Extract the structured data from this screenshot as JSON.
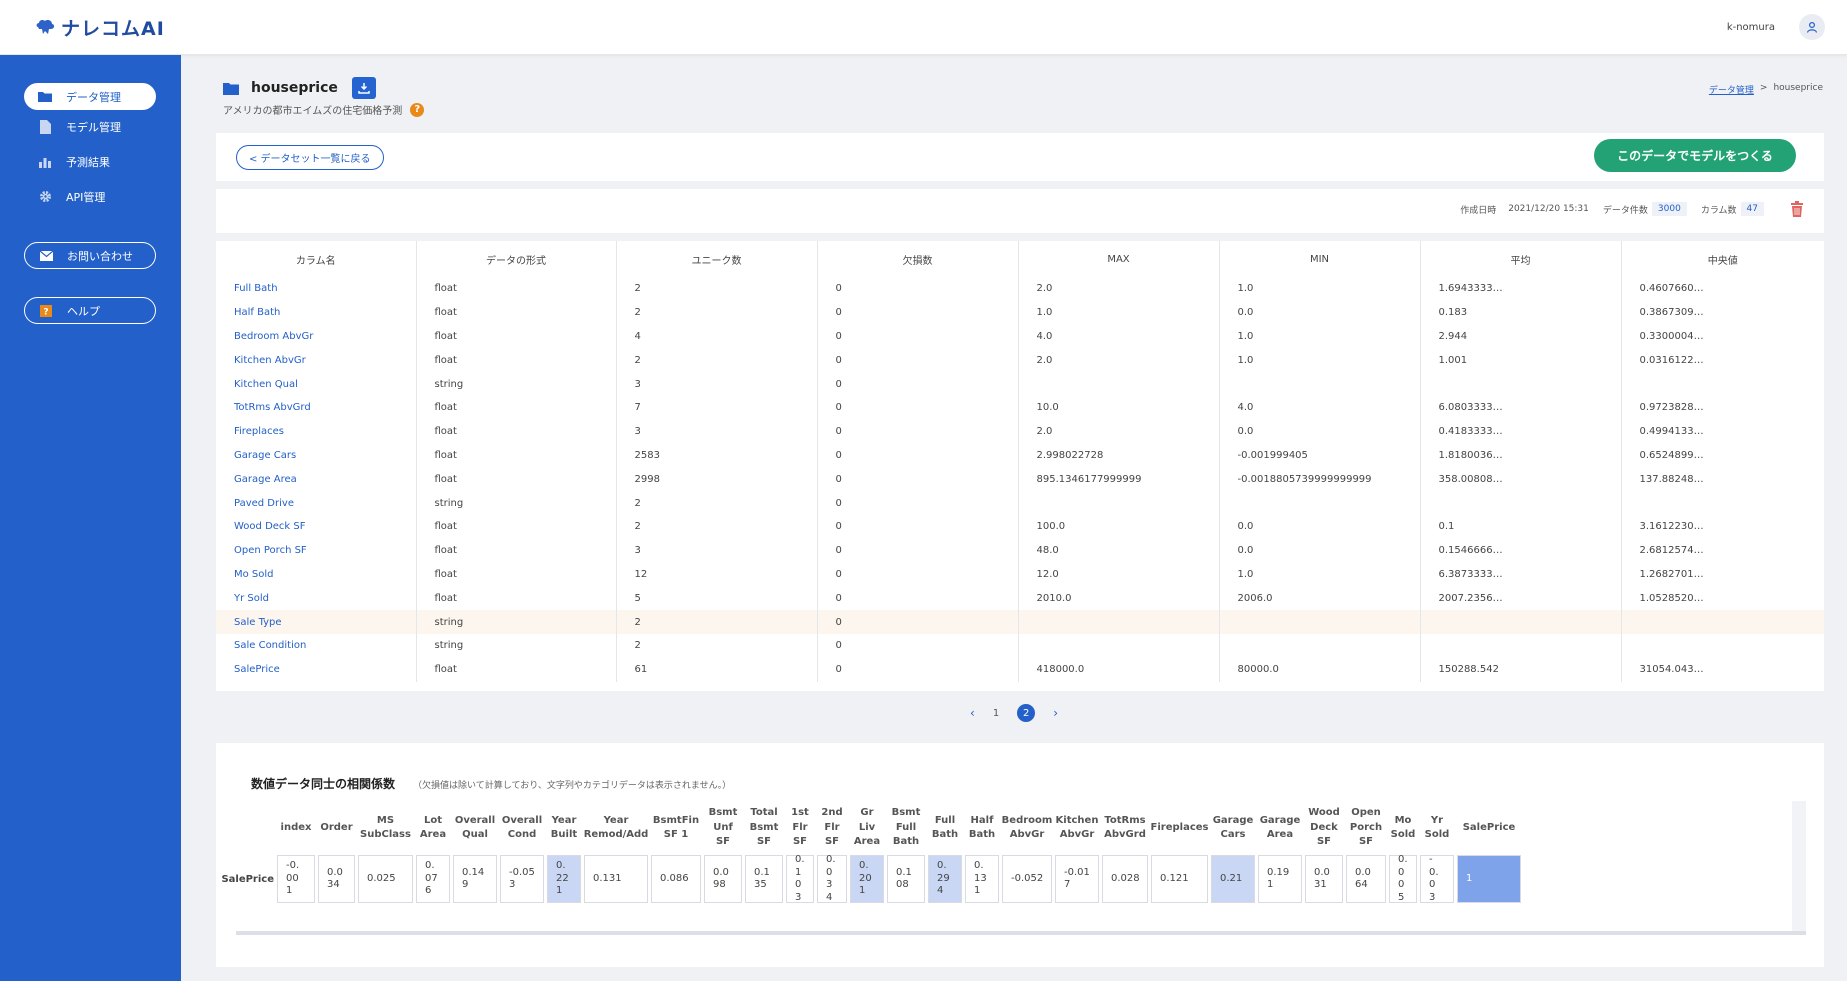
{
  "app": {
    "logo_text": "ナレコムAI",
    "user_name": "k-nomura"
  },
  "sidebar": {
    "items": [
      {
        "label": "データ管理",
        "active": true
      },
      {
        "label": "モデル管理"
      },
      {
        "label": "予測結果"
      },
      {
        "label": "API管理"
      }
    ],
    "contact_label": "お問い合わせ",
    "help_label": "ヘルプ"
  },
  "page": {
    "title": "houseprice",
    "subtitle": "アメリカの都市エイムズの住宅価格予測",
    "help_mark": "?",
    "breadcrumb": {
      "parent": "データ管理",
      "separator": ">",
      "current": "houseprice"
    },
    "back_label": "< データセット一覧に戻る",
    "make_model_label": "このデータでモデルをつくる"
  },
  "meta": {
    "created_label": "作成日時",
    "created_value": "2021/12/20 15:31",
    "rows_label": "データ件数",
    "rows_value": "3000",
    "cols_label": "カラム数",
    "cols_value": "47"
  },
  "stats": {
    "headers": [
      "カラム名",
      "データの形式",
      "ユニーク数",
      "欠損数",
      "MAX",
      "MIN",
      "平均",
      "中央値"
    ],
    "rows": [
      [
        "Full Bath",
        "float",
        "2",
        "0",
        "2.0",
        "1.0",
        "1.6943333…",
        "0.4607660…"
      ],
      [
        "Half Bath",
        "float",
        "2",
        "0",
        "1.0",
        "0.0",
        "0.183",
        "0.3867309…"
      ],
      [
        "Bedroom AbvGr",
        "float",
        "4",
        "0",
        "4.0",
        "1.0",
        "2.944",
        "0.3300004…"
      ],
      [
        "Kitchen AbvGr",
        "float",
        "2",
        "0",
        "2.0",
        "1.0",
        "1.001",
        "0.0316122…"
      ],
      [
        "Kitchen Qual",
        "string",
        "3",
        "0",
        "",
        "",
        "",
        ""
      ],
      [
        "TotRms AbvGrd",
        "float",
        "7",
        "0",
        "10.0",
        "4.0",
        "6.0803333…",
        "0.9723828…"
      ],
      [
        "Fireplaces",
        "float",
        "3",
        "0",
        "2.0",
        "0.0",
        "0.4183333…",
        "0.4994133…"
      ],
      [
        "Garage Cars",
        "float",
        "2583",
        "0",
        "2.998022728",
        "-0.001999405",
        "1.8180036…",
        "0.6524899…"
      ],
      [
        "Garage Area",
        "float",
        "2998",
        "0",
        "895.1346177999999",
        "-0.0018805739999999999",
        "358.00808…",
        "137.88248…"
      ],
      [
        "Paved Drive",
        "string",
        "2",
        "0",
        "",
        "",
        "",
        ""
      ],
      [
        "Wood Deck SF",
        "float",
        "2",
        "0",
        "100.0",
        "0.0",
        "0.1",
        "3.1612230…"
      ],
      [
        "Open Porch SF",
        "float",
        "3",
        "0",
        "48.0",
        "0.0",
        "0.1546666…",
        "2.6812574…"
      ],
      [
        "Mo Sold",
        "float",
        "12",
        "0",
        "12.0",
        "1.0",
        "6.3873333…",
        "1.2682701…"
      ],
      [
        "Yr Sold",
        "float",
        "5",
        "0",
        "2010.0",
        "2006.0",
        "2007.2356…",
        "1.0528520…"
      ],
      [
        "Sale Type",
        "string",
        "2",
        "0",
        "",
        "",
        "",
        ""
      ],
      [
        "Sale Condition",
        "string",
        "2",
        "0",
        "",
        "",
        "",
        ""
      ],
      [
        "SalePrice",
        "float",
        "61",
        "0",
        "418000.0",
        "80000.0",
        "150288.542",
        "31054.043…"
      ]
    ],
    "highlighted_row": 14
  },
  "pagination": {
    "prev": "‹",
    "pages": [
      "1",
      "2"
    ],
    "current": "2",
    "next": "›"
  },
  "correlation": {
    "title": "数値データ同士の相関係数",
    "note": "（欠損値は除いて計算しており、文字列やカテゴリデータは表示されません。）",
    "row_label": "SalePrice",
    "columns": [
      {
        "head": "index",
        "value": "-0.\n00\n1",
        "level": "none"
      },
      {
        "head": "Order",
        "value": "0.0\n34",
        "level": "none"
      },
      {
        "head": "MS\nSubClass",
        "value": "0.025",
        "level": "none"
      },
      {
        "head": "Lot\nArea",
        "value": "0.\n07\n6",
        "level": "none"
      },
      {
        "head": "Overall\nQual",
        "value": "0.14\n9",
        "level": "none"
      },
      {
        "head": "Overall\nCond",
        "value": "-0.05\n3",
        "level": "none"
      },
      {
        "head": "Year\nBuilt",
        "value": "0.\n22\n1",
        "level": "med"
      },
      {
        "head": "Year\nRemod/Add",
        "value": "0.131",
        "level": "none"
      },
      {
        "head": "BsmtFin\nSF 1",
        "value": "0.086",
        "level": "none"
      },
      {
        "head": "Bsmt\nUnf\nSF",
        "value": "0.0\n98",
        "level": "none"
      },
      {
        "head": "Total\nBsmt\nSF",
        "value": "0.1\n35",
        "level": "none"
      },
      {
        "head": "1st\nFlr\nSF",
        "value": "0.\n1\n0\n3",
        "level": "none"
      },
      {
        "head": "2nd\nFlr\nSF",
        "value": "0.\n0\n3\n4",
        "level": "none"
      },
      {
        "head": "Gr\nLiv\nArea",
        "value": "0.\n20\n1",
        "level": "med"
      },
      {
        "head": "Bsmt\nFull\nBath",
        "value": "0.1\n08",
        "level": "none"
      },
      {
        "head": "Full\nBath",
        "value": "0.\n29\n4",
        "level": "med"
      },
      {
        "head": "Half\nBath",
        "value": "0.\n13\n1",
        "level": "none"
      },
      {
        "head": "Bedroom\nAbvGr",
        "value": "-0.052",
        "level": "none"
      },
      {
        "head": "Kitchen\nAbvGr",
        "value": "-0.01\n7",
        "level": "none"
      },
      {
        "head": "TotRms\nAbvGrd",
        "value": "0.028",
        "level": "none"
      },
      {
        "head": "Fireplaces",
        "value": "0.121",
        "level": "none"
      },
      {
        "head": "Garage\nCars",
        "value": "0.21",
        "level": "med"
      },
      {
        "head": "Garage\nArea",
        "value": "0.19\n1",
        "level": "none"
      },
      {
        "head": "Wood\nDeck\nSF",
        "value": "0.0\n31",
        "level": "none"
      },
      {
        "head": "Open\nPorch\nSF",
        "value": "0.0\n64",
        "level": "none"
      },
      {
        "head": "Mo\nSold",
        "value": "0.\n0\n0\n5",
        "level": "none"
      },
      {
        "head": "Yr\nSold",
        "value": "-\n0.\n0\n3",
        "level": "none"
      },
      {
        "head": "SalePrice",
        "value": "1",
        "level": "full"
      }
    ]
  }
}
